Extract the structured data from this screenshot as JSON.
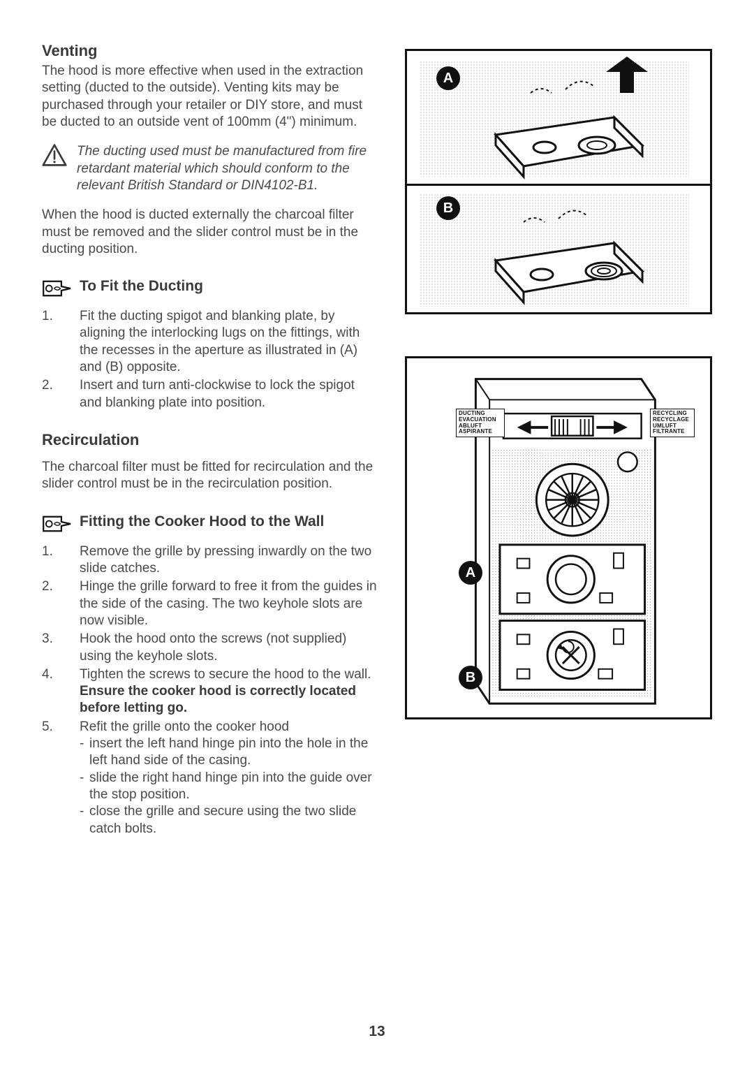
{
  "page_number": "13",
  "colors": {
    "text": "#4a4a4a",
    "heading": "#3a3a3a",
    "line": "#111111",
    "bg": "#ffffff"
  },
  "typography": {
    "body_pt": 19,
    "h1_pt": 22,
    "h2_pt": 21,
    "line_height": 1.28
  },
  "venting": {
    "heading": "Venting",
    "p1": "The hood is more effective when used in the extraction setting (ducted to the outside). Venting kits may be purchased through your retailer or DIY store, and must be ducted to an outside vent of 100mm (4\") minimum.",
    "warning": "The ducting used must be manufactured from fire retardant material which should conform to the relevant British Standard or DIN4102-B1.",
    "p2": "When the hood is ducted externally the charcoal filter must be removed and the slider control must be in the ducting position."
  },
  "fit_ducting": {
    "heading": "To Fit the Ducting",
    "steps": [
      "Fit the ducting spigot and blanking plate, by aligning the interlocking lugs on the fittings, with the recesses in the aperture as illustrated in (A) and (B) opposite.",
      "Insert and turn anti-clockwise to lock the spigot and blanking plate into position."
    ]
  },
  "recirc": {
    "heading": "Recirculation",
    "p1": "The charcoal filter must be fitted for recirculation and the slider control must be in the recirculation position."
  },
  "fitting_wall": {
    "heading": "Fitting the Cooker Hood to the Wall",
    "steps": [
      {
        "text": "Remove the grille by pressing inwardly on the two slide catches."
      },
      {
        "text": "Hinge the grille forward to free it from the guides in the side of the casing. The two keyhole slots are now visible."
      },
      {
        "text": "Hook the hood onto the screws (not supplied) using the keyhole slots."
      },
      {
        "text_pre": "Tighten the screws to secure the hood to the wall. ",
        "bold": "Ensure the cooker hood is correctly located before letting go."
      },
      {
        "text": "Refit the grille onto the cooker hood",
        "subs": [
          "insert the left hand hinge pin into the hole in the left hand side of the casing.",
          "slide the right hand hinge pin into the guide over the stop position.",
          "close the grille and secure using the two slide catch bolts."
        ]
      }
    ]
  },
  "diagram1": {
    "type": "technical-illustration",
    "labels": {
      "A": "A",
      "B": "B"
    },
    "border_color": "#111111",
    "border_width": 3,
    "stipple_spacing": 4
  },
  "diagram2": {
    "type": "technical-illustration",
    "labels": {
      "A": "A",
      "B": "B"
    },
    "slider_left": "DUCTING\nEVACUATION\nABLUFT\nASPIRANTE",
    "slider_right": "RECYCLING\nRECYCLAGE\nUMLUFT\nFILTRANTE",
    "border_color": "#111111",
    "border_width": 3
  }
}
